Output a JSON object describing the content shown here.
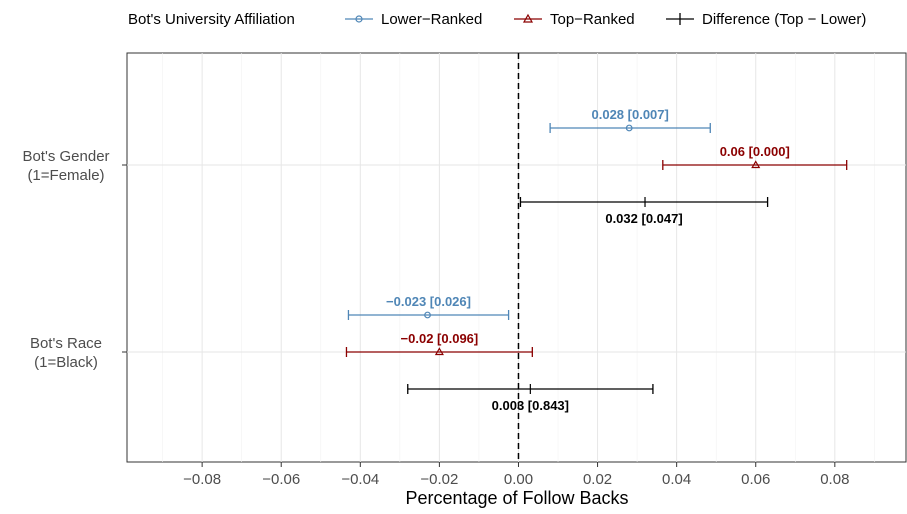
{
  "chart_data": {
    "type": "errorbar",
    "title": "",
    "xlabel": "Percentage of Follow Backs",
    "ylabel": "",
    "xlim": [
      -0.099,
      0.098
    ],
    "xticks": [
      -0.08,
      -0.06,
      -0.04,
      -0.02,
      0.0,
      0.02,
      0.04,
      0.06,
      0.08
    ],
    "xtick_labels": [
      "−0.08",
      "−0.06",
      "−0.04",
      "−0.02",
      "0.00",
      "0.02",
      "0.04",
      "0.06",
      "0.08"
    ],
    "reference_line": 0,
    "grid": true,
    "legend_position": "top",
    "legend": {
      "title": "Bot's University Affiliation",
      "entries": [
        "Lower−Ranked",
        "Top−Ranked",
        "Difference (Top − Lower)"
      ]
    },
    "categories": [
      {
        "line1": "Bot's Gender",
        "line2": "(1=Female)"
      },
      {
        "line1": "Bot's Race",
        "line2": "(1=Black)"
      }
    ],
    "series": [
      {
        "name": "Lower−Ranked",
        "color": "#4f86b6",
        "marker": "circle",
        "points": [
          {
            "estimate": 0.028,
            "lo": 0.008,
            "hi": 0.0485,
            "label": "0.028 [0.007]"
          },
          {
            "estimate": -0.023,
            "lo": -0.043,
            "hi": -0.0025,
            "label": "−0.023 [0.026]"
          }
        ]
      },
      {
        "name": "Top−Ranked",
        "color": "#8b0000",
        "marker": "triangle",
        "points": [
          {
            "estimate": 0.06,
            "lo": 0.0365,
            "hi": 0.083,
            "label": "0.06 [0.000]"
          },
          {
            "estimate": -0.02,
            "lo": -0.0435,
            "hi": 0.0035,
            "label": "−0.02 [0.096]"
          }
        ]
      },
      {
        "name": "Difference (Top − Lower)",
        "color": "#000000",
        "marker": "tick",
        "points": [
          {
            "estimate": 0.032,
            "lo": 0.0005,
            "hi": 0.063,
            "label": "0.032 [0.047]"
          },
          {
            "estimate": 0.003,
            "lo": -0.028,
            "hi": 0.034,
            "label": "0.003 [0.843]"
          }
        ]
      }
    ]
  }
}
